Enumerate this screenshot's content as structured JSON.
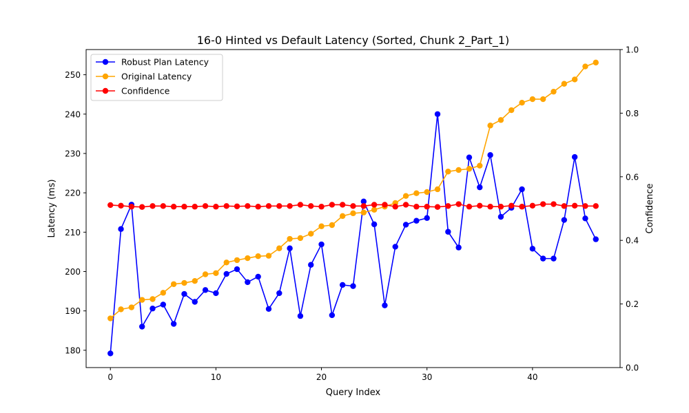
{
  "chart_data": {
    "type": "line",
    "title": "16-0 Hinted vs Default Latency (Sorted, Chunk 2_Part_1)",
    "xlabel": "Query Index",
    "ylabel": "Latency (ms)",
    "y2label": "Confidence",
    "xlim": [
      -2.3,
      48.3
    ],
    "ylim": [
      175.6,
      256.4
    ],
    "y2lim": [
      0.0,
      1.0
    ],
    "xticks": [
      0,
      10,
      20,
      30,
      40
    ],
    "yticks": [
      180,
      190,
      200,
      210,
      220,
      230,
      240,
      250
    ],
    "y2ticks": [
      0.0,
      0.2,
      0.4,
      0.6,
      0.8,
      1.0
    ],
    "y2tick_labels": [
      "0.0",
      "0.2",
      "0.4",
      "0.6",
      "0.8",
      "1.0"
    ],
    "legend_position": "top-left",
    "grid": false,
    "x": [
      0,
      1,
      2,
      3,
      4,
      5,
      6,
      7,
      8,
      9,
      10,
      11,
      12,
      13,
      14,
      15,
      16,
      17,
      18,
      19,
      20,
      21,
      22,
      23,
      24,
      25,
      26,
      27,
      28,
      29,
      30,
      31,
      32,
      33,
      34,
      35,
      36,
      37,
      38,
      39,
      40,
      41,
      42,
      43,
      44,
      45,
      46
    ],
    "series": [
      {
        "name": "Robust Plan Latency",
        "axis": "left",
        "color": "#0000ff",
        "values": [
          179.2,
          210.8,
          217.0,
          186.0,
          190.6,
          191.6,
          186.7,
          194.3,
          192.3,
          195.3,
          194.5,
          199.4,
          200.6,
          197.3,
          198.7,
          190.5,
          194.5,
          205.9,
          188.7,
          201.7,
          206.9,
          188.9,
          196.6,
          196.3,
          217.8,
          212.0,
          191.4,
          206.3,
          211.9,
          212.9,
          213.6,
          240.0,
          210.1,
          206.1,
          229.0,
          221.4,
          229.6,
          213.9,
          216.2,
          220.9,
          205.8,
          203.3,
          203.3,
          213.1,
          229.1,
          213.5,
          208.2
        ]
      },
      {
        "name": "Original Latency",
        "axis": "left",
        "color": "#ffa500",
        "values": [
          188.1,
          190.4,
          190.9,
          192.8,
          193.0,
          194.6,
          196.8,
          197.1,
          197.6,
          199.3,
          199.6,
          202.3,
          202.9,
          203.4,
          203.9,
          204.0,
          205.9,
          208.3,
          208.5,
          209.6,
          211.5,
          211.8,
          214.1,
          214.8,
          215.0,
          215.7,
          216.5,
          217.4,
          219.2,
          219.9,
          220.2,
          220.9,
          225.4,
          225.8,
          226.1,
          226.9,
          237.1,
          238.5,
          241.0,
          242.9,
          243.8,
          243.8,
          245.7,
          247.7,
          248.8,
          252.1,
          253.1
        ]
      },
      {
        "name": "Confidence",
        "axis": "right",
        "color": "#ff0000",
        "values": [
          0.511,
          0.509,
          0.506,
          0.505,
          0.508,
          0.508,
          0.506,
          0.506,
          0.506,
          0.508,
          0.506,
          0.508,
          0.507,
          0.508,
          0.506,
          0.508,
          0.508,
          0.508,
          0.512,
          0.508,
          0.506,
          0.512,
          0.512,
          0.508,
          0.508,
          0.512,
          0.512,
          0.506,
          0.512,
          0.506,
          0.506,
          0.505,
          0.508,
          0.514,
          0.506,
          0.509,
          0.506,
          0.506,
          0.509,
          0.506,
          0.509,
          0.514,
          0.514,
          0.508,
          0.509,
          0.508,
          0.508
        ]
      }
    ]
  }
}
